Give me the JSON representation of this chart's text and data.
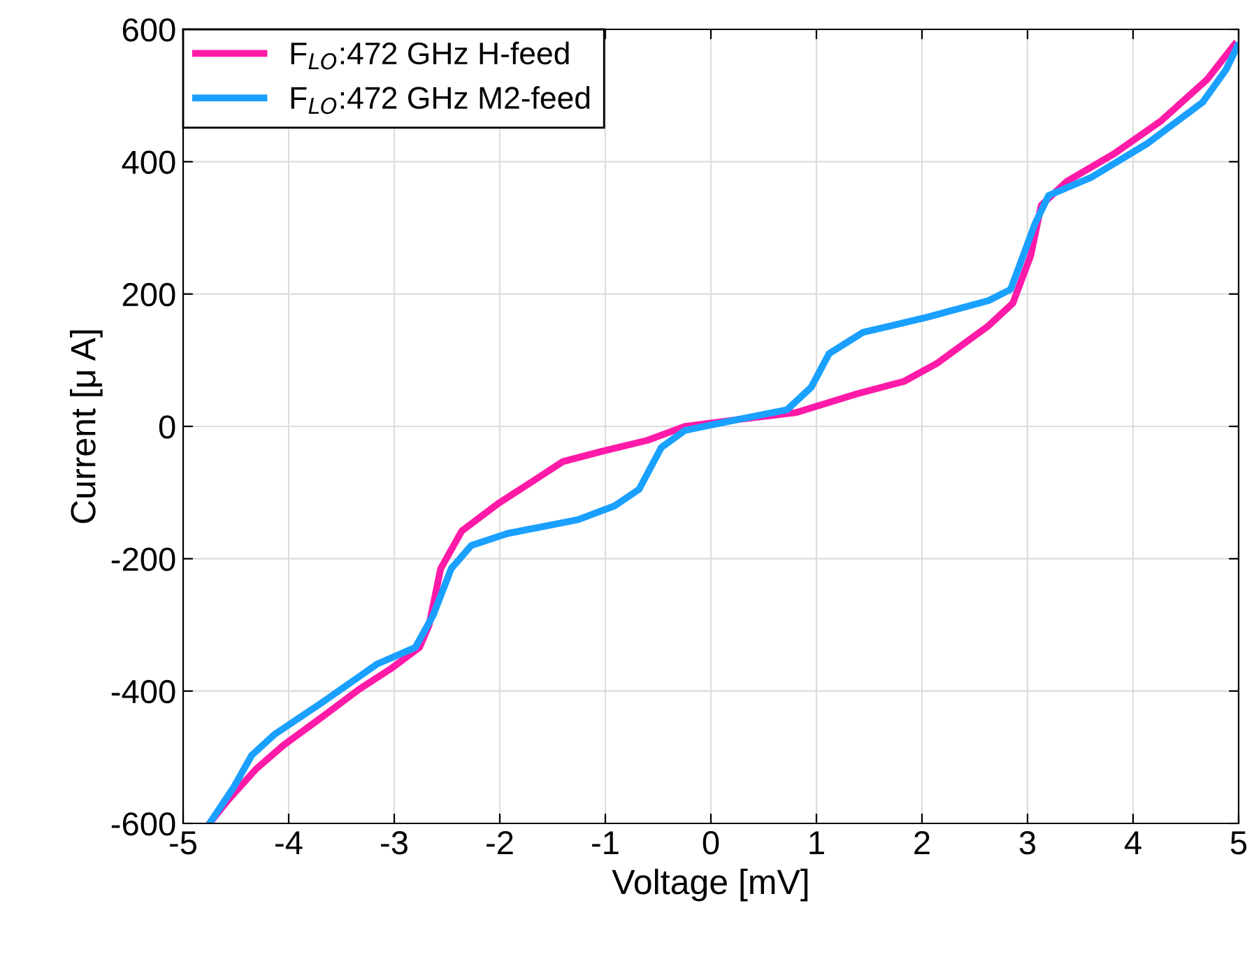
{
  "chart_data": {
    "type": "line",
    "xlabel": "Voltage [mV]",
    "ylabel": "Current [μ A]",
    "xlim": [
      -5,
      5
    ],
    "ylim": [
      -600,
      600
    ],
    "xticks": [
      -5,
      -4,
      -3,
      -2,
      -1,
      0,
      1,
      2,
      3,
      4,
      5
    ],
    "yticks": [
      -600,
      -400,
      -200,
      0,
      200,
      400,
      600
    ],
    "grid": true,
    "legend": "top left",
    "marker": "none",
    "line_style": "solid",
    "series": [
      {
        "name": "F$_{LO}$:472 GHz H-feed",
        "color": "#ff1aa8",
        "x": [
          -4.75,
          -4.58,
          -4.31,
          -4.05,
          -3.69,
          -3.33,
          -3.03,
          -2.76,
          -2.67,
          -2.56,
          -2.36,
          -2.01,
          -1.66,
          -1.4,
          -1.04,
          -0.6,
          -0.245,
          0.245,
          0.81,
          1.38,
          1.83,
          2.14,
          2.63,
          2.86,
          3.03,
          3.13,
          3.37,
          3.82,
          4.26,
          4.7,
          4.96
        ],
        "values": [
          -600,
          -566,
          -518,
          -482,
          -440,
          -397,
          -366,
          -334,
          -300,
          -215,
          -158,
          -116,
          -80,
          -53,
          -38,
          -21,
          0,
          10,
          21,
          49,
          68,
          95,
          152,
          186,
          258,
          334,
          370,
          412,
          461,
          524,
          577
        ]
      },
      {
        "name": "F$_{LO}$:472 GHz M2-feed",
        "color": "#1aa0ff",
        "x": [
          -4.75,
          -4.52,
          -4.35,
          -4.13,
          -3.69,
          -3.16,
          -2.8,
          -2.63,
          -2.46,
          -2.27,
          -1.93,
          -1.26,
          -0.91,
          -0.68,
          -0.47,
          -0.245,
          0.245,
          0.72,
          0.95,
          1.12,
          1.44,
          2.05,
          2.63,
          2.84,
          3.07,
          3.2,
          3.6,
          4.13,
          4.66,
          4.88,
          4.99
        ],
        "values": [
          -600,
          -545,
          -497,
          -465,
          -418,
          -359,
          -334,
          -285,
          -215,
          -180,
          -162,
          -141,
          -120,
          -95,
          -32,
          -6,
          10,
          25,
          59,
          110,
          142,
          165,
          190,
          207,
          306,
          349,
          376,
          427,
          490,
          539,
          575
        ]
      }
    ]
  }
}
